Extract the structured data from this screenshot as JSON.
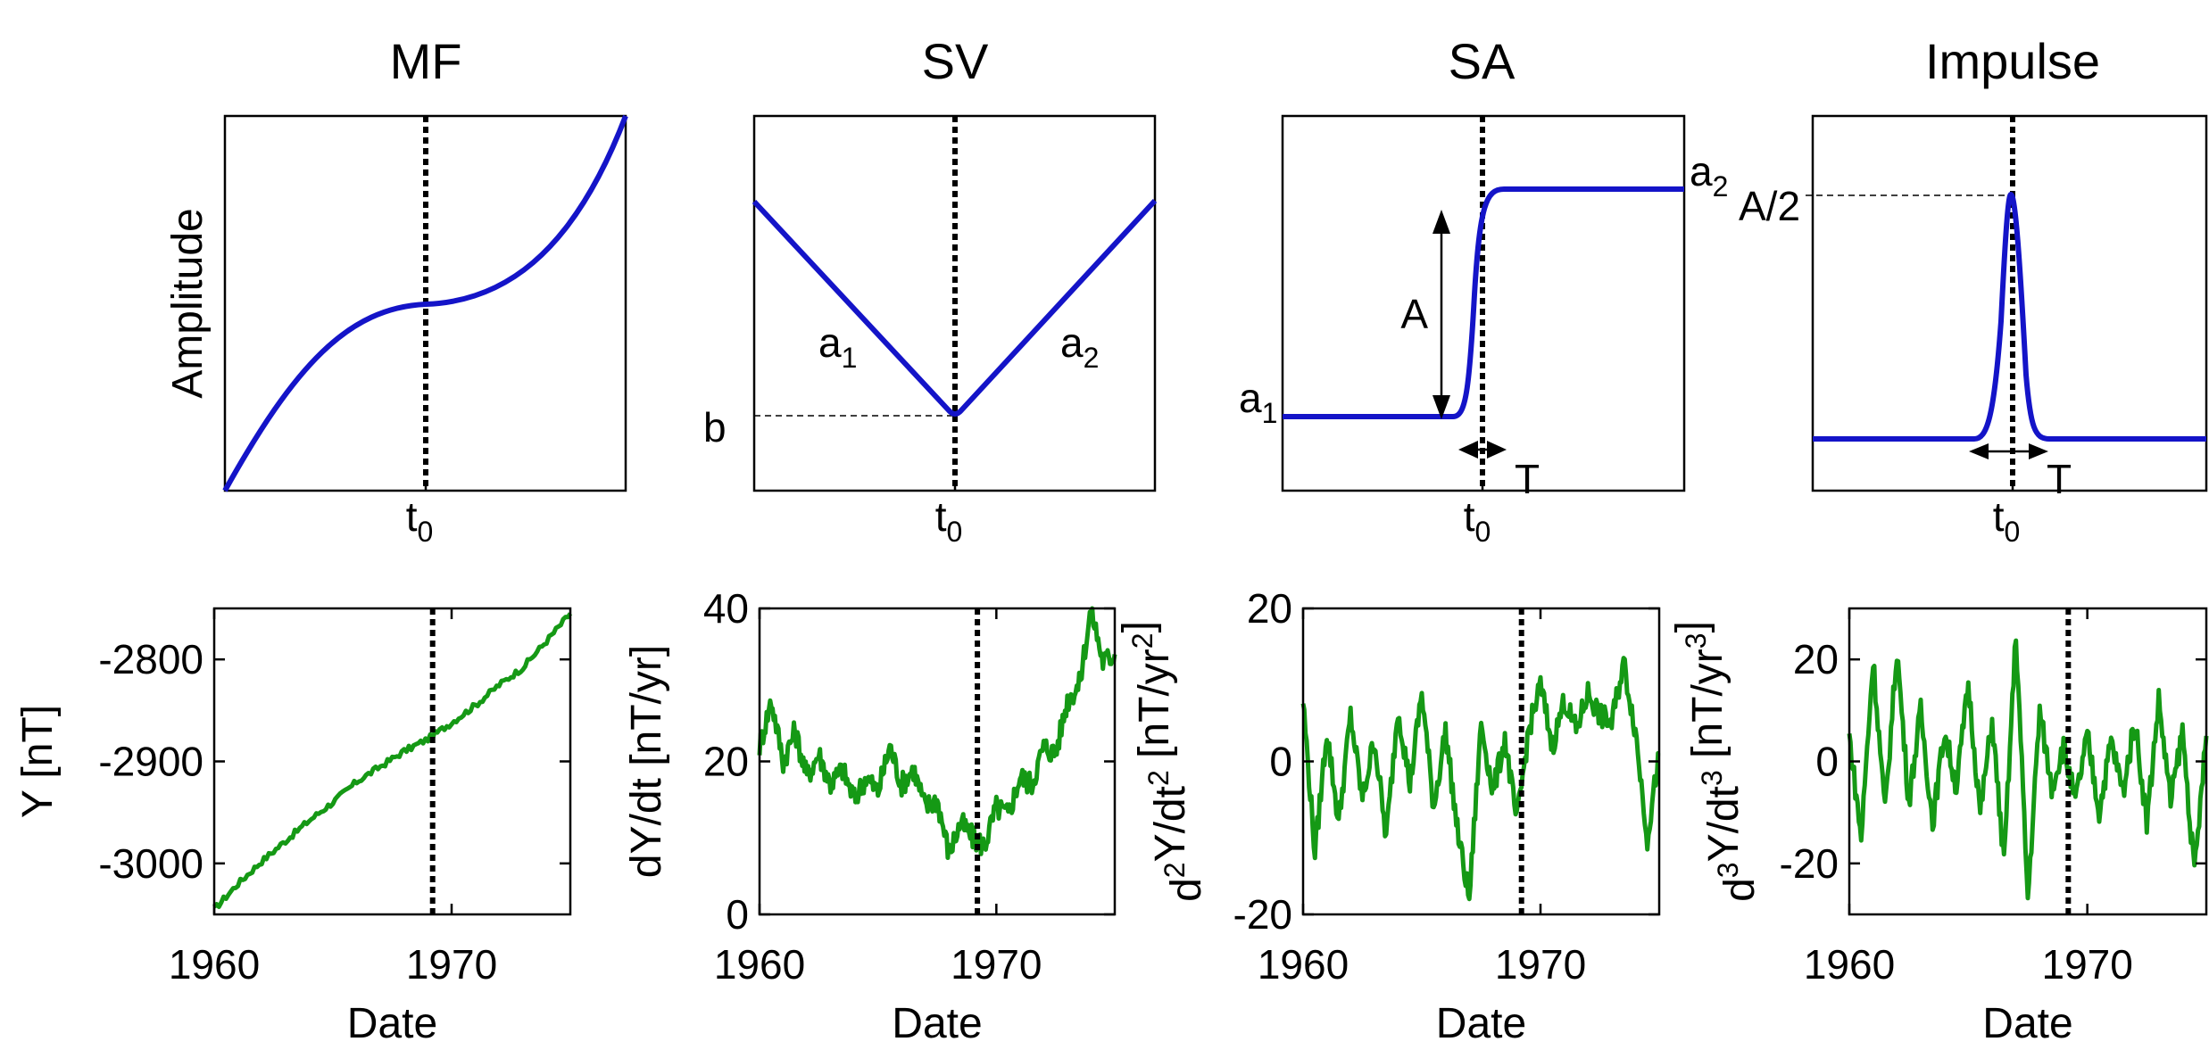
{
  "chart_data": [
    {
      "type": "line",
      "panel": "MF",
      "title": "MF",
      "ylabel": "Amplitude",
      "xlabel": "t",
      "xlabel_subscript": "0",
      "series": [
        {
          "shape": "cubic through t0",
          "color": "#1414c8"
        }
      ],
      "annotations": []
    },
    {
      "type": "line",
      "panel": "SV",
      "title": "SV",
      "xlabel": "t",
      "xlabel_subscript": "0",
      "series": [
        {
          "shape": "V-shape with minimum b at t0",
          "color": "#1414c8"
        }
      ],
      "annotations": [
        {
          "text": "a",
          "sub": "1"
        },
        {
          "text": "a",
          "sub": "2"
        },
        {
          "text": "b"
        }
      ]
    },
    {
      "type": "line",
      "panel": "SA",
      "title": "SA",
      "xlabel": "t",
      "xlabel_subscript": "0",
      "series": [
        {
          "shape": "step from a1 to a2 at t0",
          "color": "#1414c8"
        }
      ],
      "annotations": [
        {
          "text": "a",
          "sub": "1"
        },
        {
          "text": "a",
          "sub": "2"
        },
        {
          "text": "A"
        },
        {
          "text": "T"
        }
      ]
    },
    {
      "type": "line",
      "panel": "Impulse",
      "title": "Impulse",
      "xlabel": "t",
      "xlabel_subscript": "0",
      "series": [
        {
          "shape": "pulse of height A/2 at t0",
          "color": "#1414c8"
        }
      ],
      "annotations": [
        {
          "text": "A/2"
        },
        {
          "text": "T"
        }
      ]
    },
    {
      "type": "line",
      "panel": "Y",
      "xlabel": "Date",
      "ylabel": "Y [nT]",
      "xlim": [
        1960,
        1975
      ],
      "ylim": [
        -3050,
        -2750
      ],
      "xticks": [
        "1960",
        "1970"
      ],
      "yticks": [
        "-2800",
        "-2900",
        "-3000"
      ],
      "vline_x": 1969.2,
      "series": [
        {
          "color": "#159915",
          "x": [
            1960,
            1961,
            1962,
            1963,
            1964,
            1965,
            1966,
            1967,
            1968,
            1969,
            1970,
            1971,
            1972,
            1973,
            1974,
            1975
          ],
          "values": [
            -3045,
            -3020,
            -2998,
            -2978,
            -2958,
            -2940,
            -2920,
            -2905,
            -2890,
            -2878,
            -2862,
            -2845,
            -2825,
            -2808,
            -2782,
            -2755
          ]
        }
      ]
    },
    {
      "type": "line",
      "panel": "dY/dt",
      "xlabel": "Date",
      "ylabel": "dY/dt [nT/yr]",
      "xlim": [
        1960,
        1975
      ],
      "ylim": [
        0,
        40
      ],
      "xticks": [
        "1960",
        "1970"
      ],
      "yticks": [
        "0",
        "20",
        "40"
      ],
      "vline_x": 1969.2,
      "series": [
        {
          "color": "#159915",
          "x": [
            1960,
            1960.5,
            1961,
            1961.5,
            1962,
            1962.5,
            1963,
            1963.5,
            1964,
            1964.5,
            1965,
            1965.5,
            1966,
            1966.5,
            1967,
            1967.5,
            1968,
            1968.5,
            1969,
            1969.5,
            1970,
            1970.5,
            1971,
            1971.5,
            1972,
            1972.5,
            1973,
            1973.5,
            1974,
            1974.5,
            1975
          ],
          "values": [
            22,
            28,
            20,
            24,
            18,
            21,
            17,
            19,
            15,
            18,
            16,
            22,
            17,
            19,
            14,
            15,
            8,
            12,
            10,
            9,
            14,
            13,
            18,
            17,
            22,
            21,
            28,
            30,
            40,
            33,
            34
          ]
        }
      ]
    },
    {
      "type": "line",
      "panel": "d2Y/dt2",
      "xlabel": "Date",
      "ylabel": "d²Y/dt² [nT/yr²]",
      "xlim": [
        1960,
        1975
      ],
      "ylim": [
        -20,
        20
      ],
      "xticks": [
        "1960",
        "1970"
      ],
      "yticks": [
        "-20",
        "0",
        "20"
      ],
      "vline_x": 1969.2,
      "series": [
        {
          "color": "#159915",
          "x": [
            1960,
            1960.5,
            1961,
            1961.5,
            1962,
            1962.5,
            1963,
            1963.5,
            1964,
            1964.5,
            1965,
            1965.5,
            1966,
            1966.5,
            1967,
            1967.5,
            1968,
            1968.5,
            1969,
            1969.5,
            1970,
            1970.5,
            1971,
            1971.5,
            1972,
            1972.5,
            1973,
            1973.5,
            1974,
            1974.5,
            1975
          ],
          "values": [
            8,
            -12,
            4,
            -8,
            6,
            -5,
            3,
            -10,
            7,
            -3,
            9,
            -6,
            4,
            -9,
            -18,
            5,
            -4,
            3,
            -8,
            4,
            10,
            2,
            8,
            4,
            9,
            6,
            5,
            13,
            4,
            -10,
            1
          ]
        }
      ]
    },
    {
      "type": "line",
      "panel": "d3Y/dt3",
      "xlabel": "Date",
      "ylabel": "d³Y/dt³ [nT/yr³]",
      "xlim": [
        1960,
        1975
      ],
      "ylim": [
        -30,
        30
      ],
      "xticks": [
        "1960",
        "1970"
      ],
      "yticks": [
        "-20",
        "0",
        "20"
      ],
      "vline_x": 1969.2,
      "series": [
        {
          "color": "#159915",
          "x": [
            1960,
            1960.5,
            1961,
            1961.5,
            1962,
            1962.5,
            1963,
            1963.5,
            1964,
            1964.5,
            1965,
            1965.5,
            1966,
            1966.5,
            1967,
            1967.5,
            1968,
            1968.5,
            1969,
            1969.5,
            1970,
            1970.5,
            1971,
            1971.5,
            1972,
            1972.5,
            1973,
            1973.5,
            1974,
            1974.5,
            1975
          ],
          "values": [
            5,
            -15,
            20,
            -10,
            22,
            -8,
            10,
            -12,
            6,
            -5,
            15,
            -10,
            8,
            -20,
            25,
            -27,
            10,
            -5,
            3,
            -8,
            5,
            -10,
            4,
            -6,
            8,
            -12,
            12,
            -8,
            6,
            -22,
            5
          ]
        }
      ]
    }
  ]
}
